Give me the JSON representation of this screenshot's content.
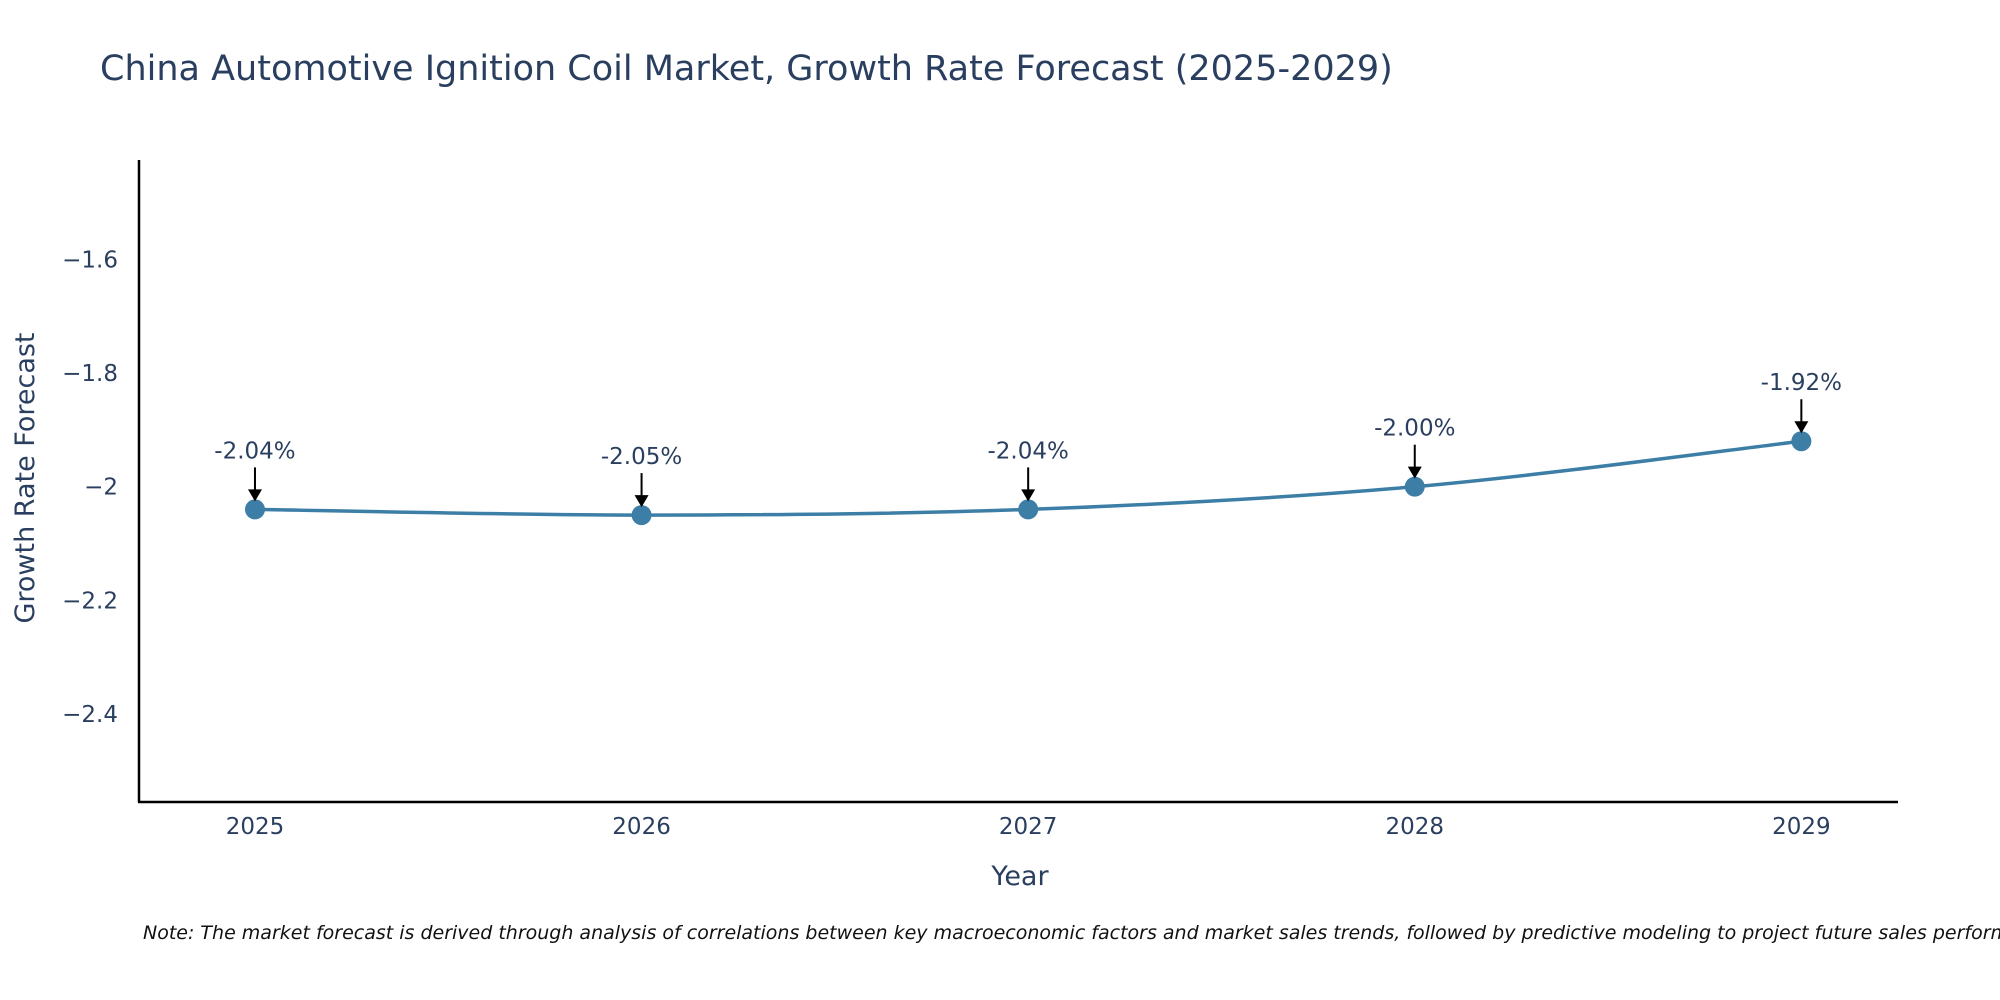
{
  "chart_data": {
    "type": "line",
    "title": "China Automotive Ignition Coil Market, Growth Rate Forecast (2025-2029)",
    "xlabel": "Year",
    "ylabel": "Growth Rate Forecast",
    "x": [
      2025,
      2026,
      2027,
      2028,
      2029
    ],
    "categories": [
      "2025",
      "2026",
      "2027",
      "2028",
      "2029"
    ],
    "series": [
      {
        "name": "Growth Rate Forecast",
        "values": [
          -2.04,
          -2.05,
          -2.04,
          -2.0,
          -1.92
        ],
        "labels": [
          "-2.04%",
          "-2.05%",
          "-2.04%",
          "-2.00%",
          "-1.92%"
        ]
      }
    ],
    "ylim": [
      -2.555,
      -1.425
    ],
    "xlim": [
      2024.7,
      2029.25
    ],
    "yticks": [
      -1.6,
      -1.8,
      -2.0,
      -2.2,
      -2.4
    ],
    "ytick_labels": [
      "−1.6",
      "−1.8",
      "−2",
      "−2.2",
      "−2.4"
    ],
    "grid": false,
    "line_color": "#3d7ea6",
    "note": "Note: The market forecast is derived through analysis of correlations between key macroeconomic factors and market sales trends, followed by predictive modeling to project future sales performance."
  }
}
